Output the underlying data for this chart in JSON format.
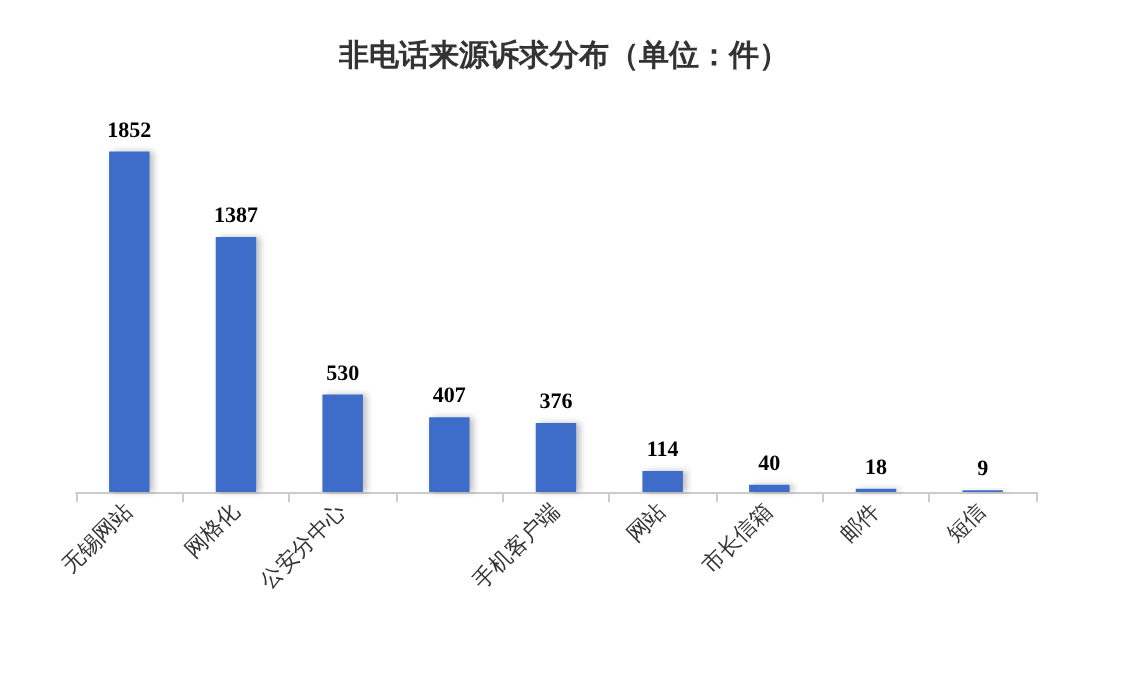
{
  "chart_data": {
    "type": "bar",
    "title": "非电话来源诉求分布（单位：件）",
    "categories": [
      "无锡网站",
      "网格化",
      "公安分中心",
      null,
      "手机客户端",
      "网站",
      "市长信箱",
      "邮件",
      "短信"
    ],
    "values": [
      1852,
      1387,
      530,
      407,
      376,
      114,
      40,
      18,
      9
    ],
    "color": "#3d6cc9",
    "data_labels": true,
    "tick_labels": "x"
  }
}
